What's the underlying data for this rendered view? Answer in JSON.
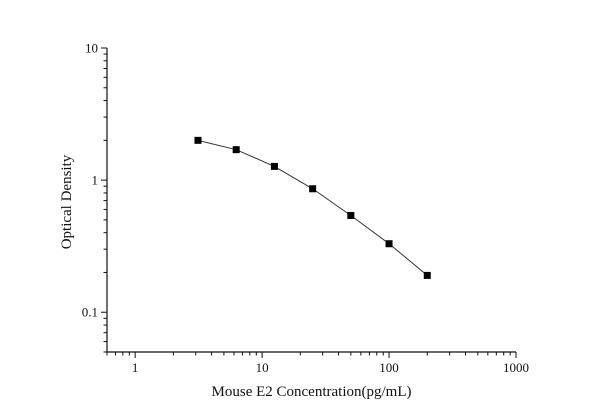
{
  "chart_data": {
    "type": "scatter",
    "title": "",
    "xlabel": "Mouse E2 Concentration(pg/mL)",
    "ylabel": "Optical Density",
    "x_scale": "log",
    "y_scale": "log",
    "xlim": [
      0.6,
      1000
    ],
    "ylim": [
      0.05,
      10
    ],
    "x_ticks": [
      {
        "value": 1,
        "label": "1"
      },
      {
        "value": 10,
        "label": "10"
      },
      {
        "value": 100,
        "label": "100"
      },
      {
        "value": 1000,
        "label": "1000"
      }
    ],
    "y_ticks": [
      {
        "value": 0.1,
        "label": "0.1"
      },
      {
        "value": 1,
        "label": "1"
      },
      {
        "value": 10,
        "label": "10"
      }
    ],
    "series": [
      {
        "x": [
          3.125,
          6.25,
          12.5,
          25,
          50,
          100,
          200
        ],
        "y": [
          2.0,
          1.7,
          1.27,
          0.86,
          0.54,
          0.33,
          0.19
        ],
        "marker": "square",
        "connected": true
      }
    ],
    "grid": false,
    "legend": "none"
  }
}
